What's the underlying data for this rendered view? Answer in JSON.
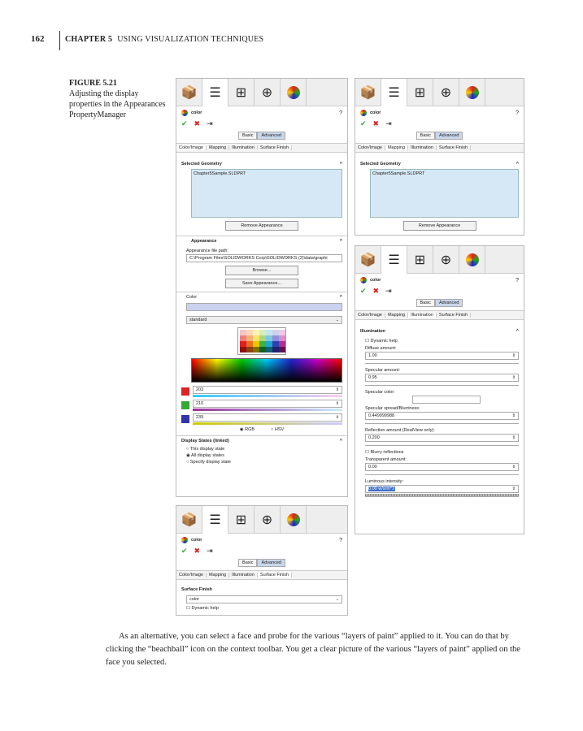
{
  "page": {
    "number": "162",
    "chapter": "CHAPTER 5",
    "chapter_title": "USING VISUALIZATION TECHNIQUES"
  },
  "figure": {
    "label": "FIGURE 5.21",
    "caption": "Adjusting the display properties in the Appearances PropertyManager"
  },
  "panel": {
    "title": "color",
    "help": "?",
    "basic": "Basic",
    "advanced": "Advanced",
    "subtabs": [
      "Color/Image",
      "Mapping",
      "Illumination",
      "Surface Finish"
    ],
    "selected_geometry": "Selected Geometry",
    "geometry_item": "Chapter5Sample.SLDPRT",
    "remove": "Remove Appearance"
  },
  "appearance": {
    "title": "Appearance",
    "path_label": "Appearance file path:",
    "path": "C:\\Program Files\\SOLIDWORKS Corp\\SOLIDWORKS (2)\\data\\graphi",
    "browse": "Browse...",
    "save": "Save Appearance..."
  },
  "color": {
    "title": "Color",
    "palette": "standard",
    "red": "203",
    "green": "210",
    "blue": "239",
    "rgb": "RGB",
    "hsv": "HSV",
    "mode": "RGB"
  },
  "display_states": {
    "title": "Display States (linked)",
    "options": [
      "This display state",
      "All display states",
      "Specify display state"
    ],
    "selected": "All display states"
  },
  "illumination": {
    "title": "Illumination",
    "dynamic_help": "Dynamic help",
    "diffuse_label": "Diffuse amount:",
    "diffuse": "1.00",
    "specular_label": "Specular amount:",
    "specular": "0.95",
    "specular_color": "Specular color:",
    "spread_label": "Specular spread/Blurriness:",
    "spread": "0.449999988",
    "reflection_label": "Reflection amount (RealView only):",
    "reflection": "0.200",
    "blurry": "Blurry reflections",
    "transparent_label": "Transparent amount:",
    "transparent": "0.00",
    "luminous_label": "Luminous intensity:",
    "luminous": "0.00 w/srm^2"
  },
  "surface_finish": {
    "title": "Surface Finish",
    "value": "color",
    "dynamic_help": "Dynamic help"
  },
  "body": "As an alternative, you can select a face and probe for the various “layers of paint” applied to it. You can do that by clicking the “beachball” icon on the context toolbar. You get a clear picture of the various “layers of paint” applied on the face you selected."
}
